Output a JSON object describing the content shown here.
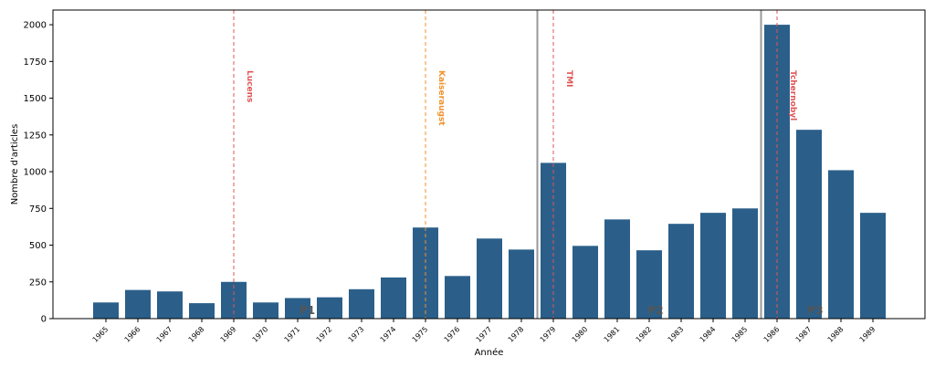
{
  "chart_data": {
    "type": "bar",
    "title": "",
    "xlabel": "Année",
    "ylabel": "Nombre d'articles",
    "ylim": [
      0,
      2100
    ],
    "yticks": [
      0,
      250,
      500,
      750,
      1000,
      1250,
      1500,
      1750,
      2000
    ],
    "bar_color": "#2b5f8a",
    "categories": [
      "1965",
      "1966",
      "1967",
      "1968",
      "1969",
      "1970",
      "1971",
      "1972",
      "1973",
      "1974",
      "1975",
      "1976",
      "1977",
      "1978",
      "1979",
      "1980",
      "1981",
      "1982",
      "1983",
      "1984",
      "1985",
      "1986",
      "1987",
      "1988",
      "1989"
    ],
    "values": [
      110,
      195,
      185,
      105,
      250,
      110,
      140,
      145,
      200,
      280,
      620,
      290,
      545,
      470,
      1060,
      495,
      675,
      465,
      645,
      720,
      750,
      2000,
      1285,
      1010,
      720
    ],
    "events": [
      {
        "label": "Lucens",
        "year": "1969",
        "color": "#e05555"
      },
      {
        "label": "Kaiseraugst",
        "year": "1975",
        "color": "#f0922b"
      },
      {
        "label": "TMI",
        "year": "1979",
        "color": "#e05555"
      },
      {
        "label": "Tchernobyl",
        "year": "1986",
        "color": "#e05555"
      }
    ],
    "period_boundaries": [
      13.5,
      20.5
    ],
    "period_boundary_color": "#999999",
    "periods": [
      {
        "label": "P1",
        "center": 6.3
      },
      {
        "label": "P2",
        "center": 17.2
      },
      {
        "label": "P3",
        "center": 22.2
      }
    ]
  }
}
